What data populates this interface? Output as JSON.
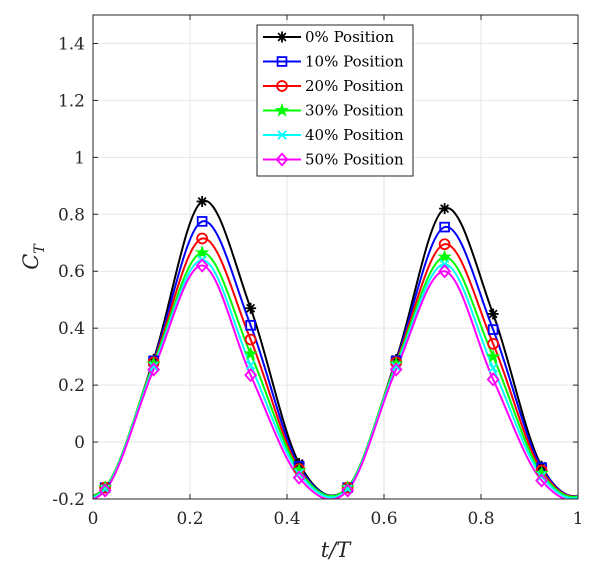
{
  "chart_data": {
    "type": "line",
    "xlabel": "t/T",
    "ylabel": "C_T",
    "xlim": [
      0,
      1
    ],
    "ylim": [
      -0.2,
      1.5
    ],
    "xticks": [
      0,
      0.2,
      0.4,
      0.6,
      0.8,
      1
    ],
    "xtick_labels": [
      "0",
      "0.2",
      "0.4",
      "0.6",
      "0.8",
      "1"
    ],
    "yticks": [
      -0.2,
      0,
      0.2,
      0.4,
      0.6,
      0.8,
      1,
      1.2,
      1.4
    ],
    "ytick_labels": [
      "-0.2",
      "0",
      "0.2",
      "0.4",
      "0.6",
      "0.8",
      "1",
      "1.2",
      "1.4"
    ],
    "grid": true,
    "legend_position": "top-center",
    "marker_x": [
      0.025,
      0.125,
      0.225,
      0.325,
      0.425,
      0.525,
      0.625,
      0.725,
      0.825,
      0.925
    ],
    "series": [
      {
        "name": "0% Position",
        "color": "#000000",
        "marker": "asterisk",
        "values": [
          -0.16,
          0.29,
          0.845,
          0.47,
          -0.075,
          -0.16,
          0.29,
          0.82,
          0.45,
          -0.085
        ]
      },
      {
        "name": "10% Position",
        "color": "#0000ff",
        "marker": "square",
        "values": [
          -0.16,
          0.285,
          0.775,
          0.41,
          -0.085,
          -0.16,
          0.285,
          0.755,
          0.395,
          -0.09
        ]
      },
      {
        "name": "20% Position",
        "color": "#ff0000",
        "marker": "circle",
        "values": [
          -0.16,
          0.28,
          0.715,
          0.36,
          -0.095,
          -0.16,
          0.28,
          0.695,
          0.345,
          -0.1
        ]
      },
      {
        "name": "30% Position",
        "color": "#00ff00",
        "marker": "pentagram",
        "values": [
          -0.16,
          0.275,
          0.665,
          0.31,
          -0.1,
          -0.16,
          0.275,
          0.65,
          0.3,
          -0.11
        ]
      },
      {
        "name": "40% Position",
        "color": "#00ffff",
        "marker": "x",
        "values": [
          -0.165,
          0.265,
          0.64,
          0.27,
          -0.11,
          -0.165,
          0.265,
          0.625,
          0.26,
          -0.12
        ]
      },
      {
        "name": "50% Position",
        "color": "#ff00ff",
        "marker": "diamond",
        "values": [
          -0.17,
          0.255,
          0.62,
          0.235,
          -0.125,
          -0.17,
          0.255,
          0.6,
          0.22,
          -0.135
        ]
      }
    ]
  }
}
